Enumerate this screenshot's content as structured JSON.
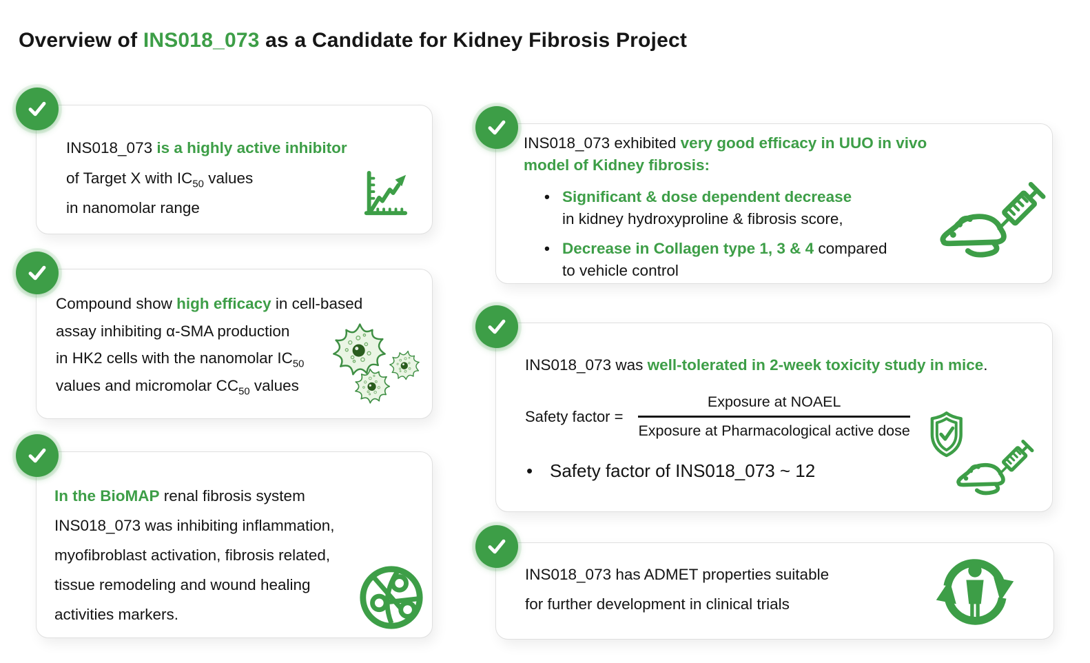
{
  "colors": {
    "green": "#3d9e47",
    "text": "#141414",
    "card_border": "#dfdfdf"
  },
  "bullet_marker": "•",
  "title": {
    "segments": [
      {
        "text": "Overview of "
      },
      {
        "text": "INS018_073",
        "style": "green-bold"
      },
      {
        "text": " as a Candidate for Kidney Fibrosis Project"
      }
    ]
  },
  "cards": {
    "left": [
      {
        "name": "target-potency",
        "icon": "line-chart-icon",
        "lines": [
          [
            {
              "text": "INS018_073 "
            },
            {
              "text": "is a highly active inhibitor",
              "style": "green-bold"
            }
          ],
          [
            {
              "text": "of Target X with IC"
            },
            {
              "text": "50",
              "style": "sub"
            },
            {
              "text": " values"
            }
          ],
          [
            {
              "text": "in nanomolar range"
            }
          ]
        ]
      },
      {
        "name": "cell-efficacy",
        "icon": "cells-icon",
        "lines": [
          [
            {
              "text": "Compound show "
            },
            {
              "text": "high efficacy",
              "style": "green-bold"
            },
            {
              "text": " in cell-based"
            }
          ],
          [
            {
              "text": "assay inhibiting α-SMA production"
            }
          ],
          [
            {
              "text": "in HK2 cells with the nanomolar IC"
            },
            {
              "text": "50",
              "style": "sub"
            }
          ],
          [
            {
              "text": "values and micromolar CC"
            },
            {
              "text": "50",
              "style": "sub"
            },
            {
              "text": " values"
            }
          ]
        ]
      },
      {
        "name": "biomap",
        "icon": "network-globe-icon",
        "lines": [
          [
            {
              "text": "In the BioMAP",
              "style": "green-bold"
            },
            {
              "text": " renal fibrosis system"
            }
          ],
          [
            {
              "text": "INS018_073 was inhibiting inflammation,"
            }
          ],
          [
            {
              "text": "myofibroblast activation, fibrosis related,"
            }
          ],
          [
            {
              "text": "tissue remodeling and wound healing"
            }
          ],
          [
            {
              "text": "activities markers."
            }
          ]
        ]
      }
    ],
    "right": [
      {
        "name": "uuo-efficacy",
        "icon": "mouse-syringe-icon",
        "intro": [
          [
            {
              "text": "INS018_073 exhibited "
            },
            {
              "text": "very good efficacy in UUO in vivo",
              "style": "green-bold"
            }
          ],
          [
            {
              "text": "model of Kidney fibrosis:",
              "style": "green-bold"
            }
          ]
        ],
        "bullets": [
          {
            "lines": [
              [
                {
                  "text": "Significant & dose dependent decrease",
                  "style": "green-bold"
                }
              ],
              [
                {
                  "text": "in kidney hydroxyproline & fibrosis score,"
                }
              ]
            ]
          },
          {
            "lines": [
              [
                {
                  "text": "Decrease in Collagen type 1, 3 & 4",
                  "style": "green-bold"
                },
                {
                  "text": " compared"
                }
              ],
              [
                {
                  "text": "to vehicle control"
                }
              ]
            ]
          }
        ]
      },
      {
        "name": "toxicity",
        "icons": [
          "shield-check-icon",
          "mouse-syringe-icon"
        ],
        "headline": [
          {
            "text": "INS018_073 was "
          },
          {
            "text": "well-tolerated in 2-week toxicity study in mice",
            "style": "green-bold"
          },
          {
            "text": "."
          }
        ],
        "formula": {
          "lhs": "Safety factor =",
          "numerator": "Exposure at NOAEL",
          "denominator": "Exposure at Pharmacological active dose"
        },
        "bullet": "Safety factor of INS018_073 ~ 12"
      },
      {
        "name": "admet",
        "icon": "person-cycle-icon",
        "lines": [
          [
            {
              "text": "INS018_073 has ADMET properties suitable"
            }
          ],
          [
            {
              "text": "for further development in clinical trials"
            }
          ]
        ]
      }
    ]
  }
}
